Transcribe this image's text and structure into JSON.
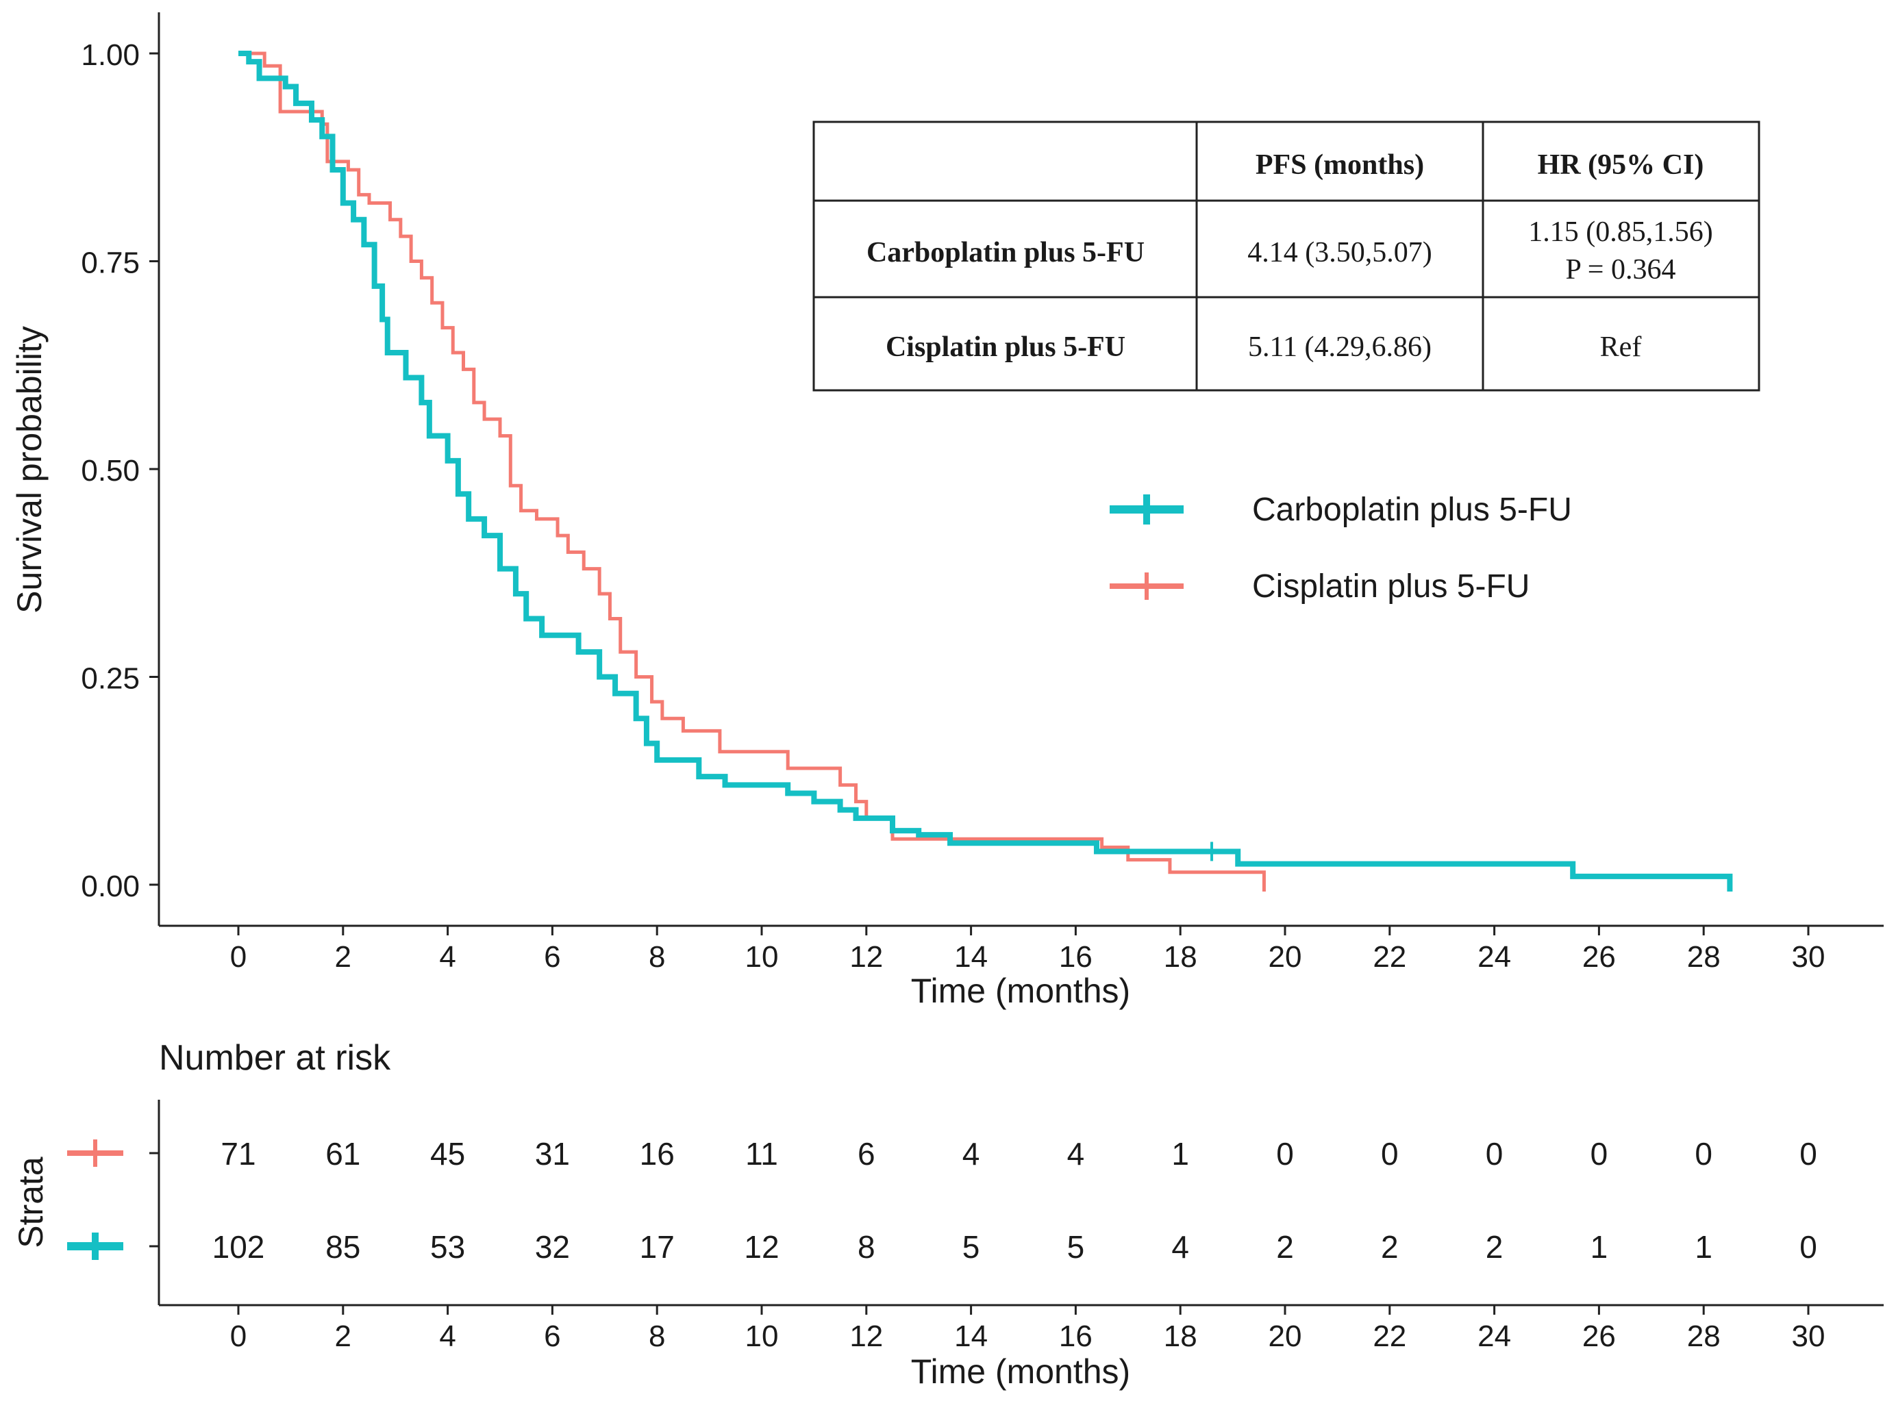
{
  "colors": {
    "carboplatin": "#15BFC4",
    "cisplatin": "#F47B72",
    "axis": "#222222",
    "text": "#1a1a1a"
  },
  "chart_data": [
    {
      "type": "line",
      "subtype": "kaplan-meier",
      "xlabel": "Time (months)",
      "ylabel": "Survival probability",
      "xlim": [
        0,
        30
      ],
      "ylim": [
        0,
        1
      ],
      "xticks": [
        "0",
        "2",
        "4",
        "6",
        "8",
        "10",
        "12",
        "14",
        "16",
        "18",
        "20",
        "22",
        "24",
        "26",
        "28",
        "30"
      ],
      "yticks": [
        {
          "value": 0,
          "label": "0.00"
        },
        {
          "value": 0.25,
          "label": "0.25"
        },
        {
          "value": 0.5,
          "label": "0.50"
        },
        {
          "value": 0.75,
          "label": "0.75"
        },
        {
          "value": 1,
          "label": "1.00"
        }
      ],
      "legend": {
        "placement": "right",
        "entries": [
          "Carboplatin plus 5-FU",
          "Cisplatin plus 5-FU"
        ]
      },
      "series": [
        {
          "name": "Carboplatin plus 5-FU",
          "color": "#15BFC4",
          "steps": [
            [
              0,
              1.0
            ],
            [
              0.2,
              0.99
            ],
            [
              0.4,
              0.97
            ],
            [
              0.9,
              0.96
            ],
            [
              1.1,
              0.94
            ],
            [
              1.4,
              0.92
            ],
            [
              1.6,
              0.9
            ],
            [
              1.8,
              0.86
            ],
            [
              2.0,
              0.82
            ],
            [
              2.2,
              0.8
            ],
            [
              2.4,
              0.77
            ],
            [
              2.6,
              0.72
            ],
            [
              2.75,
              0.68
            ],
            [
              2.85,
              0.64
            ],
            [
              3.2,
              0.61
            ],
            [
              3.5,
              0.58
            ],
            [
              3.65,
              0.54
            ],
            [
              4.0,
              0.51
            ],
            [
              4.2,
              0.47
            ],
            [
              4.4,
              0.44
            ],
            [
              4.7,
              0.42
            ],
            [
              5.0,
              0.38
            ],
            [
              5.3,
              0.35
            ],
            [
              5.5,
              0.32
            ],
            [
              5.8,
              0.3
            ],
            [
              6.5,
              0.28
            ],
            [
              6.9,
              0.25
            ],
            [
              7.2,
              0.23
            ],
            [
              7.6,
              0.2
            ],
            [
              7.8,
              0.17
            ],
            [
              8.0,
              0.15
            ],
            [
              8.8,
              0.13
            ],
            [
              9.3,
              0.12
            ],
            [
              10.5,
              0.11
            ],
            [
              11.0,
              0.1
            ],
            [
              11.5,
              0.09
            ],
            [
              11.8,
              0.08
            ],
            [
              12.5,
              0.065
            ],
            [
              13.0,
              0.06
            ],
            [
              13.6,
              0.05
            ],
            [
              16.4,
              0.04
            ],
            [
              19.1,
              0.025
            ],
            [
              25.5,
              0.01
            ],
            [
              28.5,
              0.0
            ]
          ],
          "censor_marks": [
            {
              "x": 18.6,
              "y": 0.04
            }
          ],
          "end": 28.5
        },
        {
          "name": "Cisplatin plus 5-FU",
          "color": "#F47B72",
          "steps": [
            [
              0,
              1.0
            ],
            [
              0.5,
              0.985
            ],
            [
              0.8,
              0.93
            ],
            [
              1.6,
              0.915
            ],
            [
              1.7,
              0.87
            ],
            [
              2.1,
              0.86
            ],
            [
              2.3,
              0.83
            ],
            [
              2.5,
              0.82
            ],
            [
              2.9,
              0.8
            ],
            [
              3.1,
              0.78
            ],
            [
              3.3,
              0.75
            ],
            [
              3.5,
              0.73
            ],
            [
              3.7,
              0.7
            ],
            [
              3.9,
              0.67
            ],
            [
              4.1,
              0.64
            ],
            [
              4.3,
              0.62
            ],
            [
              4.5,
              0.58
            ],
            [
              4.7,
              0.56
            ],
            [
              5.0,
              0.54
            ],
            [
              5.2,
              0.48
            ],
            [
              5.4,
              0.45
            ],
            [
              5.7,
              0.44
            ],
            [
              6.1,
              0.42
            ],
            [
              6.3,
              0.4
            ],
            [
              6.6,
              0.38
            ],
            [
              6.9,
              0.35
            ],
            [
              7.1,
              0.32
            ],
            [
              7.3,
              0.28
            ],
            [
              7.6,
              0.25
            ],
            [
              7.9,
              0.22
            ],
            [
              8.1,
              0.2
            ],
            [
              8.5,
              0.185
            ],
            [
              9.2,
              0.16
            ],
            [
              10.5,
              0.14
            ],
            [
              11.5,
              0.12
            ],
            [
              11.8,
              0.1
            ],
            [
              12.0,
              0.08
            ],
            [
              12.5,
              0.055
            ],
            [
              13.5,
              0.055
            ],
            [
              16.5,
              0.045
            ],
            [
              17.0,
              0.03
            ],
            [
              17.8,
              0.015
            ],
            [
              19.6,
              0.0
            ]
          ],
          "censor_marks": [],
          "end": 19.6
        }
      ],
      "inset_table": {
        "headers": [
          "",
          "PFS (months)",
          "HR (95% CI)"
        ],
        "rows": [
          [
            "Carboplatin plus 5-FU",
            "4.14 (3.50,5.07)",
            "1.15 (0.85,1.56)",
            "P = 0.364"
          ],
          [
            "Cisplatin plus 5-FU",
            "5.11 (4.29,6.86)",
            "Ref",
            ""
          ]
        ]
      }
    },
    {
      "type": "table",
      "title": "Number at risk",
      "ylabel": "Strata",
      "xlabel": "Time (months)",
      "xticks": [
        "0",
        "2",
        "4",
        "6",
        "8",
        "10",
        "12",
        "14",
        "16",
        "18",
        "20",
        "22",
        "24",
        "26",
        "28",
        "30"
      ],
      "rows": [
        {
          "name": "Cisplatin plus 5-FU",
          "color": "#F47B72",
          "values": [
            "71",
            "61",
            "45",
            "31",
            "16",
            "11",
            "6",
            "4",
            "4",
            "1",
            "0",
            "0",
            "0",
            "0",
            "0",
            "0"
          ]
        },
        {
          "name": "Carboplatin plus 5-FU",
          "color": "#15BFC4",
          "values": [
            "102",
            "85",
            "53",
            "32",
            "17",
            "12",
            "8",
            "5",
            "5",
            "4",
            "2",
            "2",
            "2",
            "1",
            "1",
            "0"
          ]
        }
      ]
    }
  ]
}
